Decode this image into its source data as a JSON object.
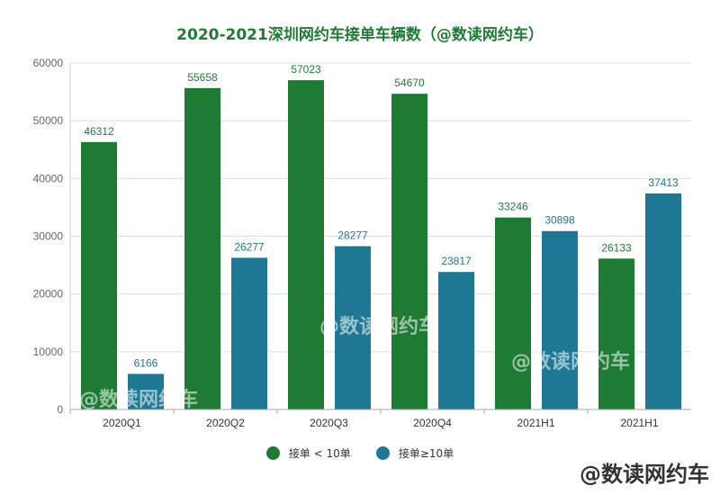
{
  "chart_data": {
    "type": "bar",
    "title": "2020-2021深圳网约车接单车辆数（@数读网约车）",
    "categories": [
      "2020Q1",
      "2020Q2",
      "2020Q3",
      "2020Q4",
      "2021H1",
      "2021H1"
    ],
    "series": [
      {
        "name": "接单 < 10单",
        "color": "#1e7b34",
        "values": [
          46312,
          55658,
          57023,
          54670,
          33246,
          26133
        ]
      },
      {
        "name": "接单≥10单",
        "color": "#1f7893",
        "values": [
          6166,
          26277,
          28277,
          23817,
          30898,
          37413
        ]
      }
    ],
    "ylim": [
      0,
      60000
    ],
    "yticks": [
      0,
      10000,
      20000,
      30000,
      40000,
      50000,
      60000
    ],
    "grid": true,
    "legend": "bottom",
    "xlabel": "",
    "ylabel": ""
  },
  "watermark": "@数读网约车"
}
